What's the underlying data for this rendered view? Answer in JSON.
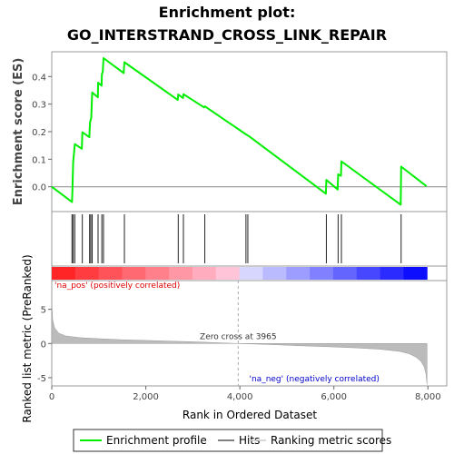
{
  "chart_data": {
    "type": "line",
    "title_line1": "Enrichment plot:",
    "title_line2": "GO_INTERSTRAND_CROSS_LINK_REPAIR",
    "es_panel": {
      "ylabel": "Enrichment score (ES)",
      "ylim": [
        -0.09,
        0.49
      ],
      "yticks": [
        0.0,
        0.1,
        0.2,
        0.3,
        0.4
      ],
      "ytick_labels": [
        "0.0",
        "0.1",
        "0.2",
        "0.3",
        "0.4"
      ],
      "profile": [
        [
          0,
          0.0
        ],
        [
          430,
          -0.055
        ],
        [
          440,
          -0.01
        ],
        [
          445,
          0.02
        ],
        [
          455,
          0.09
        ],
        [
          470,
          0.115
        ],
        [
          490,
          0.155
        ],
        [
          640,
          0.138
        ],
        [
          650,
          0.198
        ],
        [
          800,
          0.18
        ],
        [
          805,
          0.205
        ],
        [
          815,
          0.235
        ],
        [
          840,
          0.25
        ],
        [
          850,
          0.295
        ],
        [
          860,
          0.342
        ],
        [
          980,
          0.325
        ],
        [
          985,
          0.378
        ],
        [
          1060,
          0.367
        ],
        [
          1065,
          0.408
        ],
        [
          1085,
          0.418
        ],
        [
          1100,
          0.467
        ],
        [
          1530,
          0.413
        ],
        [
          1545,
          0.452
        ],
        [
          2680,
          0.315
        ],
        [
          2690,
          0.335
        ],
        [
          2790,
          0.322
        ],
        [
          2800,
          0.336
        ],
        [
          3240,
          0.288
        ],
        [
          3255,
          0.292
        ],
        [
          4130,
          0.19
        ],
        [
          4200,
          0.183
        ],
        [
          5830,
          -0.025
        ],
        [
          5840,
          0.025
        ],
        [
          6080,
          -0.01
        ],
        [
          6090,
          0.045
        ],
        [
          6150,
          0.04
        ],
        [
          6160,
          0.092
        ],
        [
          7420,
          -0.065
        ],
        [
          7430,
          0.073
        ],
        [
          7970,
          0.002
        ]
      ]
    },
    "hits": [
      430,
      455,
      490,
      650,
      805,
      815,
      850,
      860,
      985,
      1065,
      1100,
      1545,
      2690,
      2800,
      3255,
      4130,
      4170,
      5840,
      6090,
      6160,
      7430
    ],
    "ranked_metric": {
      "ylabel": "Ranked list metric (PreRanked)",
      "ylim": [
        -6.2,
        9.2
      ],
      "yticks": [
        -5,
        0,
        5
      ],
      "ytick_labels": [
        "-5",
        "0",
        "5"
      ],
      "curve": [
        [
          0,
          6.2
        ],
        [
          20,
          3.5
        ],
        [
          60,
          2.3
        ],
        [
          150,
          1.5
        ],
        [
          300,
          1.1
        ],
        [
          600,
          0.85
        ],
        [
          1000,
          0.7
        ],
        [
          1500,
          0.55
        ],
        [
          2000,
          0.45
        ],
        [
          2500,
          0.35
        ],
        [
          3000,
          0.25
        ],
        [
          3500,
          0.12
        ],
        [
          3965,
          0.0
        ],
        [
          4500,
          -0.12
        ],
        [
          5000,
          -0.25
        ],
        [
          5500,
          -0.38
        ],
        [
          6000,
          -0.5
        ],
        [
          6500,
          -0.65
        ],
        [
          7000,
          -0.85
        ],
        [
          7400,
          -1.15
        ],
        [
          7600,
          -1.5
        ],
        [
          7750,
          -2.0
        ],
        [
          7850,
          -2.6
        ],
        [
          7920,
          -3.4
        ],
        [
          7960,
          -4.5
        ],
        [
          7980,
          -6.0
        ]
      ],
      "zero_cross": 3965,
      "zero_cross_label": "Zero cross at 3965",
      "pos_label": "'na_pos' (positively correlated)",
      "neg_label": "'na_neg' (negatively correlated)"
    },
    "xaxis": {
      "label": "Rank in Ordered Dataset",
      "xlim": [
        0,
        8400
      ],
      "xticks": [
        0,
        2000,
        4000,
        6000,
        8000
      ],
      "xtick_labels": [
        "0",
        "2,000",
        "4,000",
        "6,000",
        "8,000"
      ],
      "n": 7980
    },
    "legend": {
      "items": [
        {
          "label": "Enrichment profile",
          "color": "#00ee00"
        },
        {
          "label": "Hits",
          "color": "#555555"
        },
        {
          "label": "Ranking metric scores",
          "color": "#cccccc"
        }
      ]
    },
    "colors": {
      "profile": "#00ee00",
      "hit": "#222222",
      "metric_fill": "#bbbbbb",
      "pos_text": "#dd0000",
      "neg_text": "#0000cc",
      "heat_pos": "#ff1a1a",
      "heat_neg": "#0000ff"
    }
  }
}
